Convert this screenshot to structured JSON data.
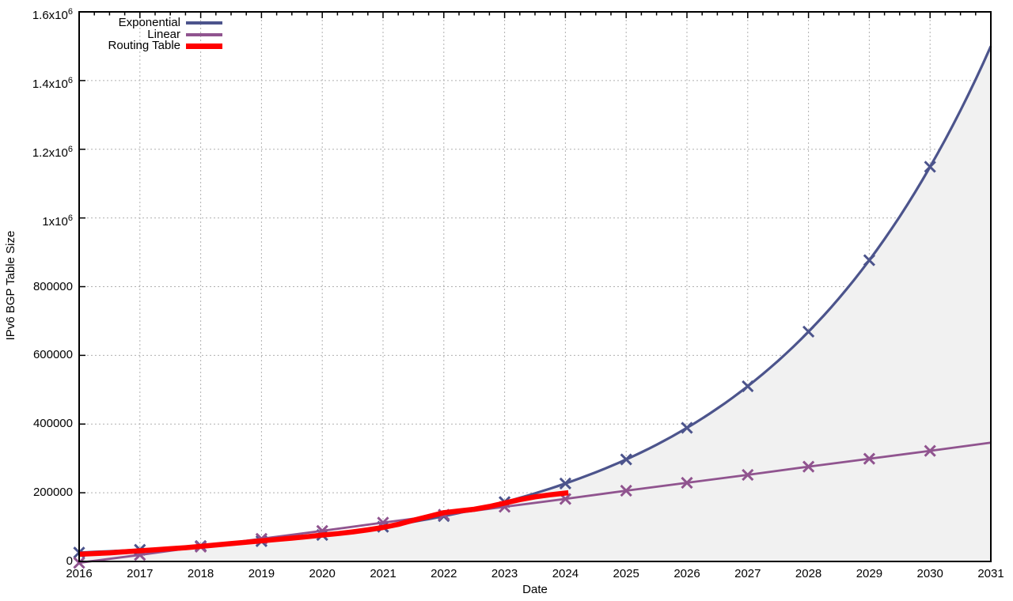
{
  "chart_data": {
    "type": "line",
    "title": "",
    "xlabel": "Date",
    "ylabel": "IPv6 BGP Table Size",
    "xlim": [
      2016,
      2031
    ],
    "ylim": [
      0,
      1600000
    ],
    "grid": "dotted",
    "legend_position": "top-left-inside",
    "x_ticks": [
      {
        "value": 2016,
        "label": "2016"
      },
      {
        "value": 2017,
        "label": "2017"
      },
      {
        "value": 2018,
        "label": "2018"
      },
      {
        "value": 2019,
        "label": "2019"
      },
      {
        "value": 2020,
        "label": "2020"
      },
      {
        "value": 2021,
        "label": "2021"
      },
      {
        "value": 2022,
        "label": "2022"
      },
      {
        "value": 2023,
        "label": "2023"
      },
      {
        "value": 2024,
        "label": "2024"
      },
      {
        "value": 2025,
        "label": "2025"
      },
      {
        "value": 2026,
        "label": "2026"
      },
      {
        "value": 2027,
        "label": "2027"
      },
      {
        "value": 2028,
        "label": "2028"
      },
      {
        "value": 2029,
        "label": "2029"
      },
      {
        "value": 2030,
        "label": "2030"
      },
      {
        "value": 2031,
        "label": "2031"
      }
    ],
    "x_minor_tick_interval": 0.25,
    "y_ticks": [
      {
        "value": 0,
        "label": "0"
      },
      {
        "value": 200000,
        "label": "200000"
      },
      {
        "value": 400000,
        "label": "400000"
      },
      {
        "value": 600000,
        "label": "600000"
      },
      {
        "value": 800000,
        "label": "800000"
      },
      {
        "value": 1000000,
        "label": "1x10^6"
      },
      {
        "value": 1200000,
        "label": "1.2x10^6"
      },
      {
        "value": 1400000,
        "label": "1.4x10^6"
      },
      {
        "value": 1600000,
        "label": "1.6x10^6"
      }
    ],
    "series": [
      {
        "name": "Exponential",
        "color": "#4c548c",
        "line_width": 3.2,
        "marker": "x",
        "smooth": "exponential",
        "fill_below": true,
        "fill_color": "#f1f1f1",
        "x": [
          2016,
          2017,
          2018,
          2019,
          2020,
          2021,
          2022,
          2023,
          2024,
          2025,
          2026,
          2027,
          2028,
          2029,
          2030,
          2031
        ],
        "values": [
          26000,
          34000,
          45000,
          59000,
          77000,
          101000,
          132000,
          173000,
          227000,
          297000,
          389000,
          510000,
          669000,
          877000,
          1149000,
          1500000
        ],
        "marker_x": [
          2016,
          2017,
          2018,
          2019,
          2020,
          2021,
          2022,
          2023,
          2024,
          2025,
          2026,
          2027,
          2028,
          2029,
          2030
        ]
      },
      {
        "name": "Linear",
        "color": "#90548f",
        "line_width": 2.8,
        "marker": "x",
        "smooth": "none",
        "fill_below": false,
        "x": [
          2016,
          2017,
          2018,
          2019,
          2020,
          2021,
          2022,
          2023,
          2024,
          2025,
          2026,
          2027,
          2028,
          2029,
          2030,
          2031
        ],
        "values": [
          -4000,
          19000,
          43000,
          66000,
          89000,
          113000,
          136000,
          159000,
          182000,
          206000,
          229000,
          252000,
          276000,
          299000,
          322000,
          346000
        ],
        "marker_x": [
          2016,
          2017,
          2018,
          2019,
          2020,
          2021,
          2022,
          2023,
          2024,
          2025,
          2026,
          2027,
          2028,
          2029,
          2030
        ]
      },
      {
        "name": "Routing Table",
        "color": "#ff0000",
        "line_width": 6.5,
        "marker": "none",
        "smooth": "none",
        "fill_below": false,
        "x": [
          2016,
          2016.25,
          2016.5,
          2016.75,
          2017,
          2017.25,
          2017.5,
          2017.75,
          2018,
          2018.25,
          2018.5,
          2018.75,
          2019,
          2019.25,
          2019.5,
          2019.75,
          2020,
          2020.25,
          2020.5,
          2020.75,
          2021,
          2021.25,
          2021.5,
          2021.75,
          2022,
          2022.25,
          2022.5,
          2022.75,
          2023,
          2023.25,
          2023.5,
          2023.75,
          2024.05
        ],
        "values": [
          21000,
          23000,
          25000,
          28000,
          31000,
          34000,
          37000,
          40000,
          44000,
          48000,
          52000,
          56000,
          60000,
          64000,
          68000,
          72000,
          77000,
          81000,
          86000,
          92000,
          99000,
          108000,
          120000,
          131000,
          142000,
          147000,
          152000,
          160000,
          170000,
          180000,
          188000,
          194000,
          200000
        ],
        "marker_x": []
      }
    ],
    "style": {
      "border_color": "#000000",
      "grid_color": "#b0b0b0",
      "background": "#ffffff",
      "marker_size": 11,
      "marker_stroke": 3
    }
  }
}
